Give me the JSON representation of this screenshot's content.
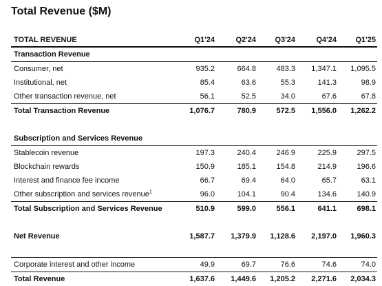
{
  "title": "Total Revenue ($M)",
  "columns": [
    "Q1'24",
    "Q2'24",
    "Q3'24",
    "Q4'24",
    "Q1'25"
  ],
  "header_label": "TOTAL REVENUE",
  "transaction": {
    "heading": "Transaction Revenue",
    "rows": [
      {
        "label": "Consumer, net",
        "values": [
          "935.2",
          "664.8",
          "483.3",
          "1,347.1",
          "1,095.5"
        ]
      },
      {
        "label": "Institutional, net",
        "values": [
          "85.4",
          "63.6",
          "55.3",
          "141.3",
          "98.9"
        ]
      },
      {
        "label": "Other transaction revenue, net",
        "values": [
          "56.1",
          "52.5",
          "34.0",
          "67.6",
          "67.8"
        ]
      }
    ],
    "total": {
      "label": "Total Transaction Revenue",
      "values": [
        "1,076.7",
        "780.9",
        "572.5",
        "1,556.0",
        "1,262.2"
      ]
    }
  },
  "subscription": {
    "heading": "Subscription and Services Revenue",
    "rows": [
      {
        "label": "Stablecoin revenue",
        "values": [
          "197.3",
          "240.4",
          "246.9",
          "225.9",
          "297.5"
        ]
      },
      {
        "label": "Blockchain rewards",
        "values": [
          "150.9",
          "185.1",
          "154.8",
          "214.9",
          "196.6"
        ]
      },
      {
        "label": "Interest and finance fee income",
        "values": [
          "66.7",
          "69.4",
          "64.0",
          "65.7",
          "63.1"
        ]
      },
      {
        "label": "Other subscription and services revenue",
        "footnote": "1",
        "values": [
          "96.0",
          "104.1",
          "90.4",
          "134.6",
          "140.9"
        ]
      }
    ],
    "total": {
      "label": "Total Subscription and Services Revenue",
      "values": [
        "510.9",
        "599.0",
        "556.1",
        "641.1",
        "698.1"
      ]
    }
  },
  "net_revenue": {
    "label": "Net Revenue",
    "values": [
      "1,587.7",
      "1,379.9",
      "1,128.6",
      "2,197.0",
      "1,960.3"
    ]
  },
  "corporate": {
    "label": "Corporate interest and other income",
    "values": [
      "49.9",
      "69.7",
      "76.6",
      "74.6",
      "74.0"
    ]
  },
  "total_revenue": {
    "label": "Total Revenue",
    "values": [
      "1,637.6",
      "1,449.6",
      "1,205.2",
      "2,271.6",
      "2,034.3"
    ]
  }
}
